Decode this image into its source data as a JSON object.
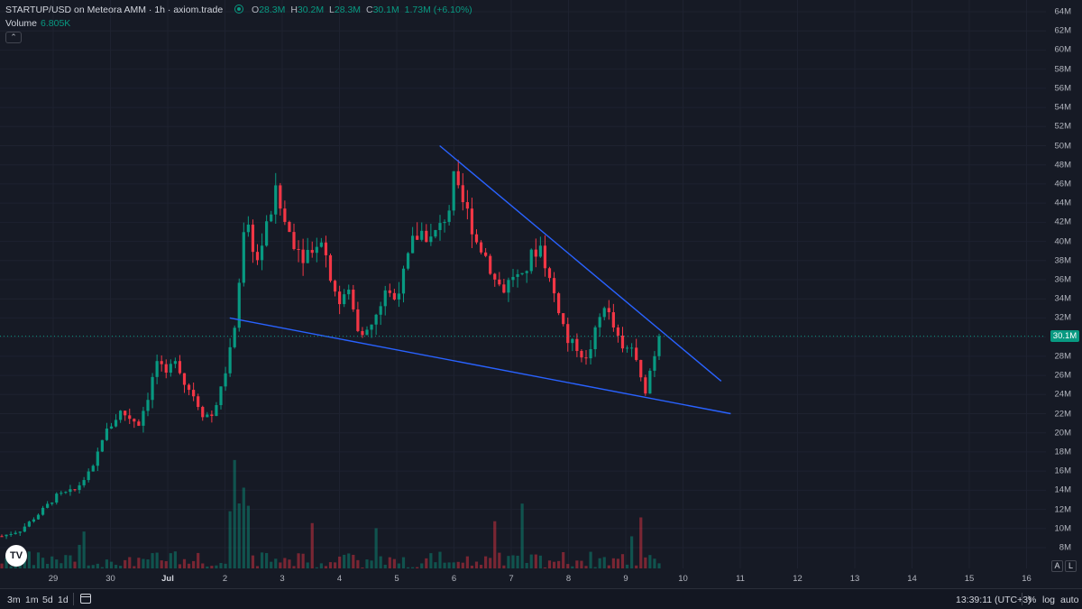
{
  "header": {
    "title": "STARTUP/USD on Meteora AMM · 1h · axiom.trade",
    "ohlc": [
      {
        "k": "O",
        "v": "28.3M"
      },
      {
        "k": "H",
        "v": "30.2M"
      },
      {
        "k": "L",
        "v": "28.3M"
      },
      {
        "k": "C",
        "v": "30.1M"
      }
    ],
    "change": "1.73M (+6.10%)",
    "volume_label": "Volume",
    "volume_value": "6.805K",
    "collapse_icon": "chevron-up-icon"
  },
  "price_axis": {
    "ticks": [
      "64M",
      "62M",
      "60M",
      "58M",
      "56M",
      "54M",
      "52M",
      "50M",
      "48M",
      "46M",
      "44M",
      "42M",
      "40M",
      "38M",
      "36M",
      "34M",
      "32M",
      "30M",
      "28M",
      "26M",
      "24M",
      "22M",
      "20M",
      "18M",
      "16M",
      "14M",
      "12M",
      "10M",
      "8M"
    ],
    "current_price": "30.1M"
  },
  "time_axis": {
    "ticks": [
      {
        "label": "29",
        "bold": false
      },
      {
        "label": "30",
        "bold": false
      },
      {
        "label": "Jul",
        "bold": true
      },
      {
        "label": "2",
        "bold": false
      },
      {
        "label": "3",
        "bold": false
      },
      {
        "label": "4",
        "bold": false
      },
      {
        "label": "5",
        "bold": false
      },
      {
        "label": "6",
        "bold": false
      },
      {
        "label": "7",
        "bold": false
      },
      {
        "label": "8",
        "bold": false
      },
      {
        "label": "9",
        "bold": false
      },
      {
        "label": "10",
        "bold": false
      },
      {
        "label": "11",
        "bold": false
      },
      {
        "label": "12",
        "bold": false
      },
      {
        "label": "13",
        "bold": false
      },
      {
        "label": "14",
        "bold": false
      },
      {
        "label": "15",
        "bold": false
      },
      {
        "label": "16",
        "bold": false
      }
    ]
  },
  "toolbar": {
    "timeframes": [
      "3m",
      "1m",
      "5d",
      "1d"
    ],
    "range_icon": "calendar-range-icon",
    "clock": "13:39:11 (UTC+3)",
    "percent": "%",
    "log": "log",
    "auto": "auto"
  },
  "axis_buttons": {
    "a": "A",
    "l": "L"
  },
  "logo": "TV",
  "colors": {
    "background": "#161a25",
    "up": "#089981",
    "down": "#f23645",
    "trendline": "#2962ff"
  },
  "chart_data": {
    "type": "candlestick",
    "series_path": [
      [
        0,
        9.2
      ],
      [
        4,
        9.8
      ],
      [
        8,
        11.5
      ],
      [
        12,
        13.4
      ],
      [
        16,
        14.0
      ],
      [
        20,
        16.3
      ],
      [
        22,
        19.5
      ],
      [
        26,
        22.2
      ],
      [
        30,
        21.0
      ],
      [
        32,
        23.8
      ],
      [
        34,
        27.5
      ],
      [
        36,
        25.8
      ],
      [
        38,
        28.0
      ],
      [
        40,
        25.2
      ],
      [
        42,
        24.0
      ],
      [
        44,
        22.0
      ],
      [
        46,
        21.8
      ],
      [
        48,
        24.5
      ],
      [
        50,
        28.5
      ],
      [
        51,
        31.5
      ],
      [
        52,
        36.0
      ],
      [
        53,
        40.5
      ],
      [
        54,
        41.0
      ],
      [
        56,
        38.0
      ],
      [
        58,
        41.5
      ],
      [
        60,
        45.0
      ],
      [
        62,
        42.0
      ],
      [
        64,
        40.0
      ],
      [
        66,
        38.5
      ],
      [
        68,
        39.5
      ],
      [
        70,
        40.5
      ],
      [
        72,
        36.5
      ],
      [
        74,
        33.5
      ],
      [
        76,
        34.8
      ],
      [
        78,
        31.0
      ],
      [
        80,
        30.5
      ],
      [
        82,
        32.0
      ],
      [
        84,
        35.0
      ],
      [
        86,
        34.0
      ],
      [
        88,
        36.5
      ],
      [
        90,
        40.0
      ],
      [
        92,
        41.0
      ],
      [
        94,
        40.2
      ],
      [
        96,
        41.5
      ],
      [
        98,
        43.5
      ],
      [
        99,
        46.5
      ],
      [
        100,
        45.0
      ],
      [
        102,
        43.0
      ],
      [
        104,
        40.0
      ],
      [
        106,
        38.5
      ],
      [
        108,
        36.0
      ],
      [
        110,
        35.0
      ],
      [
        112,
        36.5
      ],
      [
        114,
        36.0
      ],
      [
        116,
        38.5
      ],
      [
        118,
        39.5
      ],
      [
        120,
        36.0
      ],
      [
        122,
        33.0
      ],
      [
        124,
        29.5
      ],
      [
        126,
        29.0
      ],
      [
        128,
        27.5
      ],
      [
        130,
        30.5
      ],
      [
        132,
        33.5
      ],
      [
        134,
        31.0
      ],
      [
        136,
        28.5
      ],
      [
        138,
        29.0
      ],
      [
        140,
        25.5
      ],
      [
        141,
        24.5
      ],
      [
        142,
        26.5
      ],
      [
        143,
        28.3
      ],
      [
        144,
        30.1
      ]
    ],
    "candle_count": 145,
    "x_range_days": [
      "Jun 28",
      "Jul 16"
    ],
    "y_range": [
      8,
      64
    ],
    "trendlines": [
      {
        "from": [
          "Jul 5 18:00",
          50.0
        ],
        "to": [
          "Jul 10 16:00",
          25.4
        ]
      },
      {
        "from": [
          "Jul 2 02:00",
          32.0
        ],
        "to": [
          "Jul 10 20:00",
          22.0
        ]
      }
    ],
    "current_price": 30.1
  }
}
